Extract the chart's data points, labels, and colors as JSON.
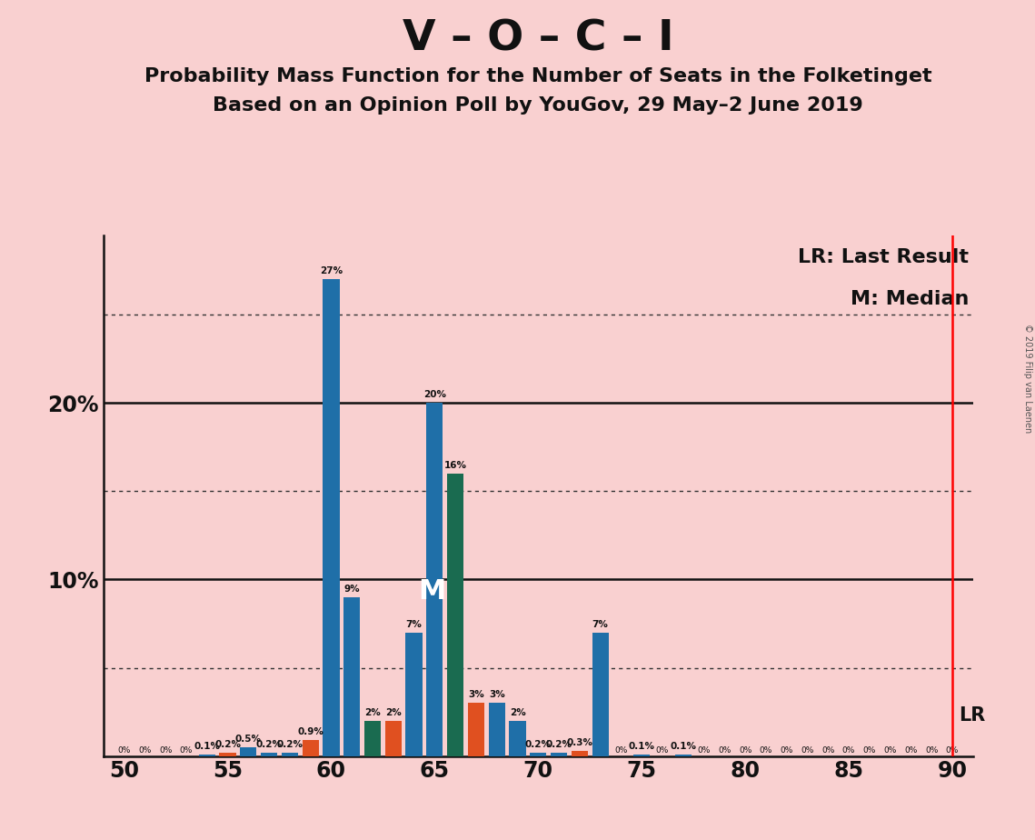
{
  "title": "V – O – C – I",
  "subtitle1": "Probability Mass Function for the Number of Seats in the Folketinget",
  "subtitle2": "Based on an Opinion Poll by YouGov, 29 May–2 June 2019",
  "copyright": "© 2019 Filip van Laenen",
  "lr_label": "LR: Last Result",
  "m_label": "M: Median",
  "lr_value": 90,
  "median_value": 65,
  "background_color": "#F9D0D0",
  "xlim": [
    49.0,
    91.0
  ],
  "ylim": [
    0,
    0.295
  ],
  "yticks": [
    0.0,
    0.05,
    0.1,
    0.15,
    0.2,
    0.25
  ],
  "ytick_labels": [
    "",
    "",
    "10%",
    "",
    "20%",
    ""
  ],
  "xticks": [
    50,
    55,
    60,
    65,
    70,
    75,
    80,
    85,
    90
  ],
  "bars": [
    {
      "x": 50,
      "value": 0.0,
      "color": "#1F6FA8",
      "label": "0%"
    },
    {
      "x": 51,
      "value": 0.0,
      "color": "#1F6FA8",
      "label": "0%"
    },
    {
      "x": 52,
      "value": 0.0,
      "color": "#1F6FA8",
      "label": "0%"
    },
    {
      "x": 53,
      "value": 0.0,
      "color": "#1F6FA8",
      "label": "0%"
    },
    {
      "x": 54,
      "value": 0.001,
      "color": "#1F6FA8",
      "label": "0.1%"
    },
    {
      "x": 55,
      "value": 0.002,
      "color": "#E05020",
      "label": "0.2%"
    },
    {
      "x": 56,
      "value": 0.005,
      "color": "#1F6FA8",
      "label": "0.5%"
    },
    {
      "x": 57,
      "value": 0.002,
      "color": "#1F6FA8",
      "label": "0.2%"
    },
    {
      "x": 58,
      "value": 0.002,
      "color": "#1F6FA8",
      "label": "0.2%"
    },
    {
      "x": 59,
      "value": 0.009,
      "color": "#E05020",
      "label": "0.9%"
    },
    {
      "x": 60,
      "value": 0.27,
      "color": "#1F6FA8",
      "label": "27%"
    },
    {
      "x": 61,
      "value": 0.09,
      "color": "#1F6FA8",
      "label": "9%"
    },
    {
      "x": 62,
      "value": 0.02,
      "color": "#1A6B50",
      "label": "2%"
    },
    {
      "x": 63,
      "value": 0.02,
      "color": "#E05020",
      "label": "2%"
    },
    {
      "x": 64,
      "value": 0.07,
      "color": "#1F6FA8",
      "label": "7%"
    },
    {
      "x": 65,
      "value": 0.2,
      "color": "#1F6FA8",
      "label": "20%"
    },
    {
      "x": 66,
      "value": 0.16,
      "color": "#1A6B50",
      "label": "16%"
    },
    {
      "x": 67,
      "value": 0.03,
      "color": "#E05020",
      "label": "3%"
    },
    {
      "x": 68,
      "value": 0.03,
      "color": "#1F6FA8",
      "label": "3%"
    },
    {
      "x": 69,
      "value": 0.02,
      "color": "#1F6FA8",
      "label": "2%"
    },
    {
      "x": 70,
      "value": 0.002,
      "color": "#1F6FA8",
      "label": "0.2%"
    },
    {
      "x": 71,
      "value": 0.002,
      "color": "#1F6FA8",
      "label": "0.2%"
    },
    {
      "x": 72,
      "value": 0.003,
      "color": "#E05020",
      "label": "0.3%"
    },
    {
      "x": 73,
      "value": 0.07,
      "color": "#1F6FA8",
      "label": "7%"
    },
    {
      "x": 74,
      "value": 0.0,
      "color": "#1F6FA8",
      "label": "0%"
    },
    {
      "x": 75,
      "value": 0.001,
      "color": "#1F6FA8",
      "label": "0.1%"
    },
    {
      "x": 76,
      "value": 0.0,
      "color": "#1F6FA8",
      "label": "0%"
    },
    {
      "x": 77,
      "value": 0.001,
      "color": "#1F6FA8",
      "label": "0.1%"
    },
    {
      "x": 78,
      "value": 0.0,
      "color": "#1F6FA8",
      "label": "0%"
    },
    {
      "x": 79,
      "value": 0.0,
      "color": "#1F6FA8",
      "label": "0%"
    },
    {
      "x": 80,
      "value": 0.0,
      "color": "#1F6FA8",
      "label": "0%"
    },
    {
      "x": 81,
      "value": 0.0,
      "color": "#1F6FA8",
      "label": "0%"
    },
    {
      "x": 82,
      "value": 0.0,
      "color": "#1F6FA8",
      "label": "0%"
    },
    {
      "x": 83,
      "value": 0.0,
      "color": "#1F6FA8",
      "label": "0%"
    },
    {
      "x": 84,
      "value": 0.0,
      "color": "#1F6FA8",
      "label": "0%"
    },
    {
      "x": 85,
      "value": 0.0,
      "color": "#1F6FA8",
      "label": "0%"
    },
    {
      "x": 86,
      "value": 0.0,
      "color": "#1F6FA8",
      "label": "0%"
    },
    {
      "x": 87,
      "value": 0.0,
      "color": "#1F6FA8",
      "label": "0%"
    },
    {
      "x": 88,
      "value": 0.0,
      "color": "#1F6FA8",
      "label": "0%"
    },
    {
      "x": 89,
      "value": 0.0,
      "color": "#1F6FA8",
      "label": "0%"
    },
    {
      "x": 90,
      "value": 0.0,
      "color": "#1F6FA8",
      "label": "0%"
    }
  ],
  "dotted_gridlines": [
    0.05,
    0.15,
    0.25
  ],
  "solid_gridlines": [
    0.1,
    0.2
  ]
}
